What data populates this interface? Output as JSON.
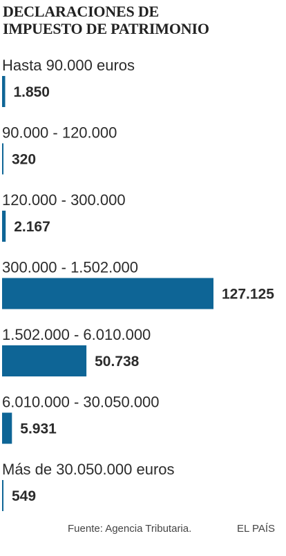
{
  "chart_data": {
    "type": "bar",
    "orientation": "horizontal",
    "title_lines": [
      "DECLARACIONES DE",
      "IMPUESTO DE PATRIMONIO"
    ],
    "categories": [
      "Hasta 90.000 euros",
      "90.000 - 120.000",
      "120.000 - 300.000",
      "300.000 - 1.502.000",
      "1.502.000 - 6.010.000",
      "6.010.000 - 30.050.000",
      "Más de 30.050.000 euros"
    ],
    "values": [
      1850,
      320,
      2167,
      127125,
      50738,
      5931,
      549
    ],
    "value_labels": [
      "1.850",
      "320",
      "2.167",
      "127.125",
      "50.738",
      "5.931",
      "549"
    ],
    "bar_color": "#0e6596",
    "xlim": [
      0,
      127125
    ],
    "grid": false,
    "legend": "none"
  },
  "footer": {
    "source": "Fuente: Agencia Tributaria.",
    "brand": "EL PAÍS"
  }
}
